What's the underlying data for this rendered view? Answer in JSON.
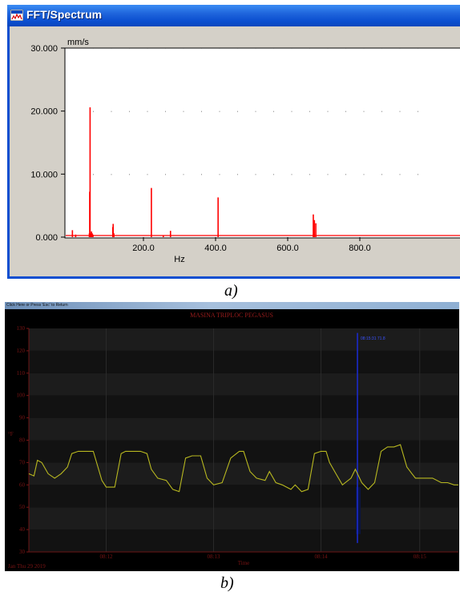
{
  "panel_a": {
    "window_title": "FFT/Spectrum",
    "caption": "a)",
    "chart_data": {
      "type": "bar",
      "ylabel": "mm/s",
      "xlabel": "Hz",
      "xlim": [
        0,
        960
      ],
      "ylim": [
        0,
        30
      ],
      "x_ticks": [
        200,
        400,
        600,
        800
      ],
      "x_tick_labels": [
        "200.0",
        "400.0",
        "600.0",
        "800.0"
      ],
      "y_ticks": [
        0,
        10,
        20,
        30
      ],
      "y_tick_labels": [
        "0.000",
        "10.000",
        "20.000",
        "30.000"
      ],
      "grid": true,
      "baseline": 0.25,
      "color": "#ff0000",
      "series": [
        {
          "x": [
            3,
            12,
            50,
            51,
            52,
            55,
            56,
            58,
            60,
            115,
            116,
            118,
            222,
            255,
            275,
            407,
            671,
            674,
            678
          ],
          "values": [
            1.1,
            0.4,
            0.6,
            7.2,
            20.6,
            0.6,
            0.9,
            0.6,
            0.4,
            1.6,
            2.1,
            0.6,
            7.8,
            0.3,
            1.0,
            6.3,
            3.6,
            2.7,
            2.2
          ]
        }
      ]
    }
  },
  "panel_b": {
    "topbar_text": "Click Here or Press 'Esc' to Return",
    "caption": "b)",
    "chart_data": {
      "type": "line",
      "title": "MASINA TRIPLOC PEGASUS",
      "xlabel": "Time",
      "ylabel": "°F",
      "date_label": "Jan Thu 29 2019",
      "marker_label": "08:15:31 71.8",
      "ylim": [
        30,
        130
      ],
      "y_ticks": [
        30,
        40,
        50,
        60,
        70,
        80,
        90,
        100,
        110,
        120,
        130
      ],
      "x_tick_labels": [
        "08:12",
        "08:13",
        "08:14",
        "08:15"
      ],
      "x_tick_positions": [
        0.18,
        0.43,
        0.68,
        0.91
      ],
      "line_color": "#b8b820",
      "marker_color": "#1a2bd6",
      "series": [
        {
          "x": [
            0.0,
            0.012,
            0.02,
            0.03,
            0.045,
            0.06,
            0.075,
            0.09,
            0.1,
            0.115,
            0.13,
            0.15,
            0.17,
            0.18,
            0.2,
            0.215,
            0.225,
            0.24,
            0.26,
            0.275,
            0.285,
            0.3,
            0.32,
            0.335,
            0.35,
            0.365,
            0.38,
            0.392,
            0.4,
            0.415,
            0.43,
            0.45,
            0.47,
            0.49,
            0.5,
            0.515,
            0.53,
            0.55,
            0.56,
            0.575,
            0.59,
            0.61,
            0.62,
            0.635,
            0.65,
            0.665,
            0.68,
            0.692,
            0.7,
            0.715,
            0.73,
            0.75,
            0.76,
            0.775,
            0.79,
            0.805,
            0.82,
            0.835,
            0.85,
            0.865,
            0.88,
            0.892,
            0.9,
            0.92,
            0.94,
            0.96,
            0.975,
            0.99,
            1.0
          ],
          "y": [
            65,
            64,
            71,
            70,
            65,
            63,
            65,
            68,
            74,
            75,
            75,
            75,
            62,
            59,
            59,
            74,
            75,
            75,
            75,
            74,
            67,
            63,
            62,
            58,
            57,
            72,
            73,
            73,
            73,
            63,
            60,
            61,
            72,
            75,
            75,
            66,
            63,
            62,
            66,
            61,
            60,
            58,
            60,
            57,
            58,
            74,
            75,
            75,
            70,
            65,
            60,
            63,
            67,
            61,
            58,
            61,
            75,
            77,
            77,
            78,
            68,
            65,
            63,
            63,
            63,
            61,
            61,
            60,
            60
          ]
        }
      ]
    }
  }
}
